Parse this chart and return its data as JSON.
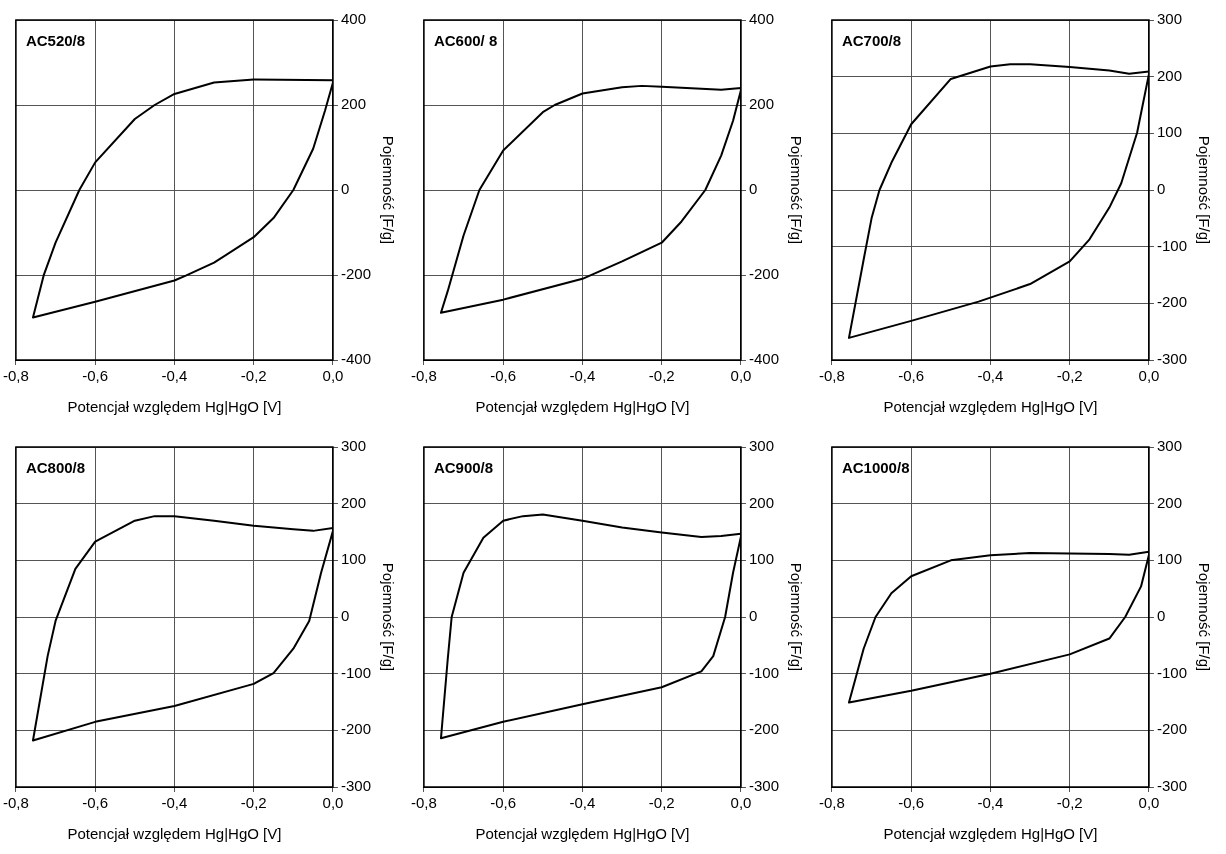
{
  "chart_data": [
    {
      "type": "line",
      "title": "AC520/8",
      "xlabel": "Potencjał względem Hg|HgO [V]",
      "ylabel": "Pojemność [F/g]",
      "marker": "none",
      "grid": true,
      "legend": false,
      "xlim": [
        -0.8,
        0
      ],
      "ylim": [
        -400,
        400
      ],
      "xticks": [
        {
          "value": -0.8,
          "label": "-0,8"
        },
        {
          "value": -0.6,
          "label": "-0,6"
        },
        {
          "value": -0.4,
          "label": "-0,4"
        },
        {
          "value": -0.2,
          "label": "-0,2"
        },
        {
          "value": 0,
          "label": "0,0"
        }
      ],
      "yticks": [
        -400,
        -200,
        0,
        200,
        400
      ],
      "series": [
        {
          "color": "#000000",
          "x": [
            0,
            -0.2,
            -0.3,
            -0.4,
            -0.45,
            -0.5,
            -0.6,
            -0.64,
            -0.7,
            -0.73,
            -0.757,
            -0.6,
            -0.4,
            -0.37,
            -0.3,
            -0.2,
            -0.15,
            -0.1,
            -0.05,
            -0.02,
            0
          ],
          "values": [
            258,
            260,
            253,
            226,
            200,
            167,
            65,
            0,
            -124,
            -201,
            -300,
            -263,
            -213,
            -201,
            -171,
            -111,
            -66,
            0,
            97,
            187,
            253
          ]
        }
      ]
    },
    {
      "type": "line",
      "title": "AC600/ 8",
      "xlabel": "Potencjał względem Hg|HgO [V]",
      "ylabel": "Pojemność [F/g]",
      "marker": "none",
      "grid": true,
      "legend": false,
      "xlim": [
        -0.8,
        0
      ],
      "ylim": [
        -400,
        400
      ],
      "xticks": [
        {
          "value": -0.8,
          "label": "-0,8"
        },
        {
          "value": -0.6,
          "label": "-0,6"
        },
        {
          "value": -0.4,
          "label": "-0,4"
        },
        {
          "value": -0.2,
          "label": "-0,2"
        },
        {
          "value": 0,
          "label": "0,0"
        }
      ],
      "yticks": [
        -400,
        -200,
        0,
        200,
        400
      ],
      "series": [
        {
          "color": "#000000",
          "x": [
            0,
            -0.05,
            -0.1,
            -0.2,
            -0.25,
            -0.3,
            -0.4,
            -0.47,
            -0.5,
            -0.6,
            -0.66,
            -0.7,
            -0.74,
            -0.757,
            -0.6,
            -0.4,
            -0.3,
            -0.2,
            -0.15,
            -0.09,
            -0.05,
            -0.02,
            0
          ],
          "values": [
            240,
            236,
            238,
            243,
            245,
            242,
            227,
            200,
            183,
            93,
            0,
            -107,
            -238,
            -289,
            -258,
            -209,
            -168,
            -124,
            -74,
            0,
            81,
            163,
            235
          ]
        }
      ]
    },
    {
      "type": "line",
      "title": "AC700/8",
      "xlabel": "Potencjał względem Hg|HgO [V]",
      "ylabel": "Pojemność [F/g]",
      "marker": "none",
      "grid": true,
      "legend": false,
      "xlim": [
        -0.8,
        0
      ],
      "ylim": [
        -300,
        300
      ],
      "xticks": [
        {
          "value": -0.8,
          "label": "-0,8"
        },
        {
          "value": -0.6,
          "label": "-0,6"
        },
        {
          "value": -0.4,
          "label": "-0,4"
        },
        {
          "value": -0.2,
          "label": "-0,2"
        },
        {
          "value": 0,
          "label": "0,0"
        }
      ],
      "yticks": [
        -300,
        -200,
        -100,
        0,
        100,
        200,
        300
      ],
      "series": [
        {
          "color": "#000000",
          "x": [
            0,
            -0.05,
            -0.1,
            -0.2,
            -0.3,
            -0.35,
            -0.4,
            -0.5,
            -0.6,
            -0.65,
            -0.68,
            -0.7,
            -0.72,
            -0.757,
            -0.6,
            -0.43,
            -0.3,
            -0.2,
            -0.15,
            -0.1,
            -0.07,
            -0.03,
            0
          ],
          "values": [
            209,
            205,
            211,
            217,
            222,
            222,
            218,
            196,
            116,
            48,
            0,
            -50,
            -123,
            -261,
            -231,
            -197,
            -166,
            -126,
            -87,
            -31,
            12,
            101,
            205
          ]
        }
      ]
    },
    {
      "type": "line",
      "title": "AC800/8",
      "xlabel": "Potencjał względem Hg|HgO [V]",
      "ylabel": "Pojemność [F/g]",
      "marker": "none",
      "grid": true,
      "legend": false,
      "xlim": [
        -0.8,
        0
      ],
      "ylim": [
        -300,
        300
      ],
      "xticks": [
        {
          "value": -0.8,
          "label": "-0,8"
        },
        {
          "value": -0.6,
          "label": "-0,6"
        },
        {
          "value": -0.4,
          "label": "-0,4"
        },
        {
          "value": -0.2,
          "label": "-0,2"
        },
        {
          "value": 0,
          "label": "0,0"
        }
      ],
      "yticks": [
        -300,
        -200,
        -100,
        0,
        100,
        200,
        300
      ],
      "series": [
        {
          "color": "#000000",
          "x": [
            0,
            -0.05,
            -0.1,
            -0.2,
            -0.3,
            -0.4,
            -0.45,
            -0.5,
            -0.6,
            -0.65,
            -0.7,
            -0.72,
            -0.757,
            -0.6,
            -0.4,
            -0.2,
            -0.15,
            -0.1,
            -0.06,
            -0.03,
            0
          ],
          "values": [
            157,
            152,
            155,
            161,
            170,
            178,
            178,
            170,
            133,
            85,
            -7,
            -69,
            -218,
            -185,
            -157,
            -118,
            -99,
            -56,
            -7,
            78,
            152
          ]
        }
      ]
    },
    {
      "type": "line",
      "title": "AC900/8",
      "xlabel": "Potencjał względem Hg|HgO [V]",
      "ylabel": "Pojemność [F/g]",
      "marker": "none",
      "grid": true,
      "legend": false,
      "xlim": [
        -0.8,
        0
      ],
      "ylim": [
        -300,
        300
      ],
      "xticks": [
        {
          "value": -0.8,
          "label": "-0,8"
        },
        {
          "value": -0.6,
          "label": "-0,6"
        },
        {
          "value": -0.4,
          "label": "-0,4"
        },
        {
          "value": -0.2,
          "label": "-0,2"
        },
        {
          "value": 0,
          "label": "0,0"
        }
      ],
      "yticks": [
        -300,
        -200,
        -100,
        0,
        100,
        200,
        300
      ],
      "series": [
        {
          "color": "#000000",
          "x": [
            0,
            -0.05,
            -0.1,
            -0.2,
            -0.3,
            -0.4,
            -0.5,
            -0.55,
            -0.6,
            -0.65,
            -0.7,
            -0.73,
            -0.74,
            -0.757,
            -0.6,
            -0.4,
            -0.2,
            -0.1,
            -0.07,
            -0.04,
            -0.02,
            0
          ],
          "values": [
            147,
            143,
            141,
            149,
            158,
            170,
            181,
            178,
            170,
            140,
            78,
            0,
            -75,
            -214,
            -185,
            -154,
            -124,
            -96,
            -69,
            0,
            78,
            142
          ]
        }
      ]
    },
    {
      "type": "line",
      "title": "AC1000/8",
      "xlabel": "Potencjał względem Hg|HgO [V]",
      "ylabel": "Pojemność [F/g]",
      "marker": "none",
      "grid": true,
      "legend": false,
      "xlim": [
        -0.8,
        0
      ],
      "ylim": [
        -300,
        300
      ],
      "xticks": [
        {
          "value": -0.8,
          "label": "-0,8"
        },
        {
          "value": -0.6,
          "label": "-0,6"
        },
        {
          "value": -0.4,
          "label": "-0,4"
        },
        {
          "value": -0.2,
          "label": "-0,2"
        },
        {
          "value": 0,
          "label": "0,0"
        }
      ],
      "yticks": [
        -300,
        -200,
        -100,
        0,
        100,
        200,
        300
      ],
      "series": [
        {
          "color": "#000000",
          "x": [
            0,
            -0.05,
            -0.1,
            -0.2,
            -0.3,
            -0.4,
            -0.5,
            -0.6,
            -0.65,
            -0.69,
            -0.72,
            -0.757,
            -0.6,
            -0.4,
            -0.2,
            -0.1,
            -0.06,
            -0.02,
            0
          ],
          "values": [
            115,
            110,
            111,
            112,
            113,
            109,
            100,
            72,
            42,
            0,
            -56,
            -151,
            -130,
            -100,
            -66,
            -38,
            0,
            54,
            110
          ]
        }
      ]
    }
  ]
}
